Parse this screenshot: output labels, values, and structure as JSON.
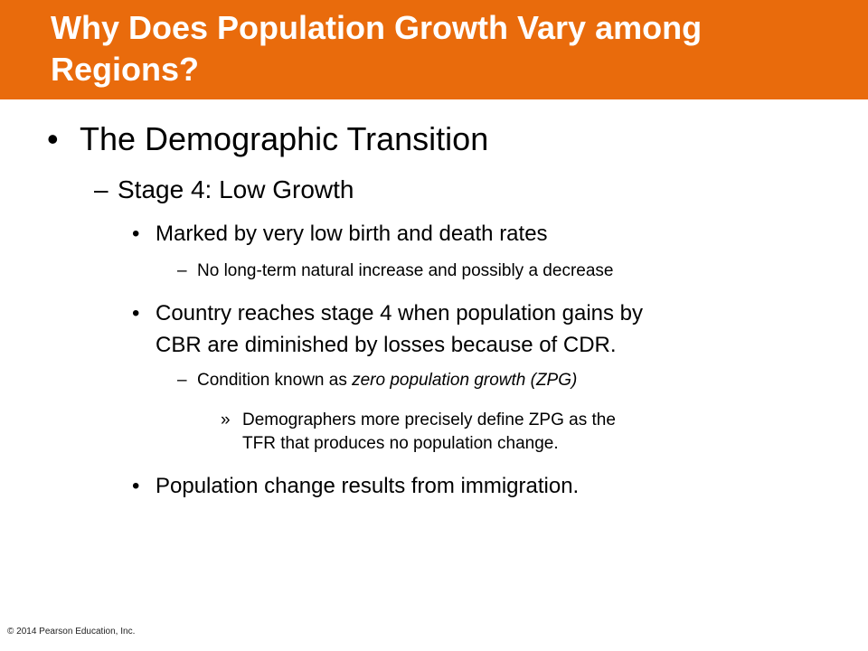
{
  "header": {
    "title": "Why Does Population Growth Vary among Regions?"
  },
  "content": {
    "level1": {
      "text": "The Demographic Transition"
    },
    "level2": {
      "text": "Stage 4: Low Growth"
    },
    "point1": {
      "text": "Marked by very low birth and death rates",
      "sub": "No long-term natural increase and possibly a decrease"
    },
    "point2": {
      "line1": "Country reaches stage 4 when population gains by",
      "line2": "CBR are diminished by losses because of CDR.",
      "sub_prefix": "Condition known as ",
      "sub_italic": "zero population growth (ZPG)",
      "subsub_line1": "Demographers more precisely define ZPG as the",
      "subsub_line2": "TFR that produces no population change."
    },
    "point3": {
      "text": "Population change results from immigration."
    },
    "markers": {
      "bullet": "•",
      "dash": "–",
      "raquo": "»"
    }
  },
  "footer": {
    "copyright": "© 2014 Pearson Education, Inc."
  },
  "colors": {
    "title_bar": "#E96B0C",
    "title_text": "#FFFFFF",
    "body_text": "#000000"
  }
}
